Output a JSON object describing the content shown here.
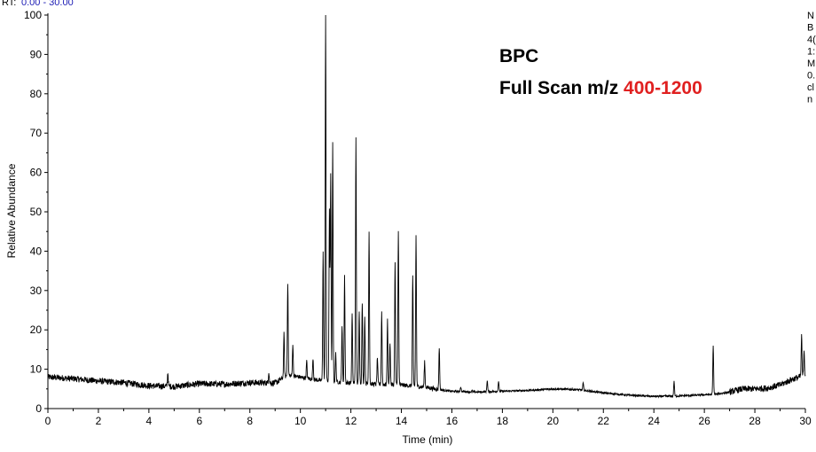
{
  "header": {
    "rt_label": "RT:",
    "rt_range": "0.00 - 30.00"
  },
  "annotation": {
    "line1": "BPC",
    "line2_prefix": "Full Scan m/z ",
    "line2_range": "400-1200"
  },
  "side_text": [
    "N",
    "B",
    "4(",
    "1:",
    "M",
    "0.",
    "cl",
    "n"
  ],
  "colors": {
    "trace": "#000000",
    "rt_range": "#1c1cb4",
    "highlight": "#e02020",
    "axis": "#000000"
  },
  "chart_data": {
    "type": "line",
    "title": "",
    "xlabel": "Time (min)",
    "ylabel": "Relative Abundance",
    "xlim": [
      0,
      30
    ],
    "ylim": [
      0,
      100
    ],
    "x_ticks": [
      0,
      2,
      4,
      6,
      8,
      10,
      12,
      14,
      16,
      18,
      20,
      22,
      24,
      26,
      28,
      30
    ],
    "y_ticks": [
      0,
      10,
      20,
      30,
      40,
      50,
      60,
      70,
      80,
      90,
      100
    ],
    "grid": false,
    "baseline": [
      [
        0,
        8.0
      ],
      [
        1,
        7.6
      ],
      [
        2,
        7.0
      ],
      [
        3,
        6.6
      ],
      [
        4,
        5.8
      ],
      [
        5,
        5.6
      ],
      [
        6,
        6.3
      ],
      [
        7,
        6.2
      ],
      [
        8,
        6.6
      ],
      [
        9,
        6.5
      ],
      [
        9.5,
        8.5
      ],
      [
        10,
        8.0
      ],
      [
        10.5,
        7.4
      ],
      [
        11,
        7.0
      ],
      [
        12,
        6.5
      ],
      [
        13,
        6.2
      ],
      [
        14,
        6.0
      ],
      [
        15,
        5.4
      ],
      [
        15.5,
        4.8
      ],
      [
        16,
        4.4
      ],
      [
        17,
        4.2
      ],
      [
        18,
        4.4
      ],
      [
        19,
        4.6
      ],
      [
        20,
        5.0
      ],
      [
        21,
        4.8
      ],
      [
        22,
        4.0
      ],
      [
        23,
        3.4
      ],
      [
        24,
        3.1
      ],
      [
        25,
        3.2
      ],
      [
        26,
        3.5
      ],
      [
        26.5,
        3.7
      ],
      [
        27,
        4.2
      ],
      [
        27.5,
        5.0
      ],
      [
        28,
        5.0
      ],
      [
        28.5,
        5.2
      ],
      [
        29,
        6.0
      ],
      [
        29.5,
        7.5
      ],
      [
        30,
        8.5
      ]
    ],
    "peaks": [
      {
        "rt": 4.75,
        "height": 9.2
      },
      {
        "rt": 8.75,
        "height": 9.5
      },
      {
        "rt": 9.35,
        "height": 19.0
      },
      {
        "rt": 9.5,
        "height": 32.0
      },
      {
        "rt": 9.7,
        "height": 16.5
      },
      {
        "rt": 10.25,
        "height": 12.0
      },
      {
        "rt": 10.5,
        "height": 13.0
      },
      {
        "rt": 10.9,
        "height": 40.0
      },
      {
        "rt": 11.0,
        "height": 100.0
      },
      {
        "rt": 11.15,
        "height": 50.5
      },
      {
        "rt": 11.2,
        "height": 59.0
      },
      {
        "rt": 11.28,
        "height": 67.5
      },
      {
        "rt": 11.4,
        "height": 14.0
      },
      {
        "rt": 11.65,
        "height": 21.0
      },
      {
        "rt": 11.75,
        "height": 33.5
      },
      {
        "rt": 12.05,
        "height": 24.0
      },
      {
        "rt": 12.2,
        "height": 68.5
      },
      {
        "rt": 12.33,
        "height": 25.0
      },
      {
        "rt": 12.45,
        "height": 27.0
      },
      {
        "rt": 12.55,
        "height": 23.5
      },
      {
        "rt": 12.72,
        "height": 45.0
      },
      {
        "rt": 13.05,
        "height": 13.0
      },
      {
        "rt": 13.22,
        "height": 24.5
      },
      {
        "rt": 13.45,
        "height": 22.5
      },
      {
        "rt": 13.55,
        "height": 17.0
      },
      {
        "rt": 13.75,
        "height": 37.0
      },
      {
        "rt": 13.88,
        "height": 45.5
      },
      {
        "rt": 14.45,
        "height": 34.0
      },
      {
        "rt": 14.58,
        "height": 44.0
      },
      {
        "rt": 14.92,
        "height": 12.0
      },
      {
        "rt": 15.5,
        "height": 15.5
      },
      {
        "rt": 16.35,
        "height": 5.6
      },
      {
        "rt": 16.8,
        "height": 4.5
      },
      {
        "rt": 17.4,
        "height": 7.2
      },
      {
        "rt": 17.85,
        "height": 7.0
      },
      {
        "rt": 21.2,
        "height": 6.5
      },
      {
        "rt": 24.8,
        "height": 7.0
      },
      {
        "rt": 26.35,
        "height": 16.0
      },
      {
        "rt": 29.85,
        "height": 18.5
      },
      {
        "rt": 29.95,
        "height": 15.0
      }
    ]
  }
}
